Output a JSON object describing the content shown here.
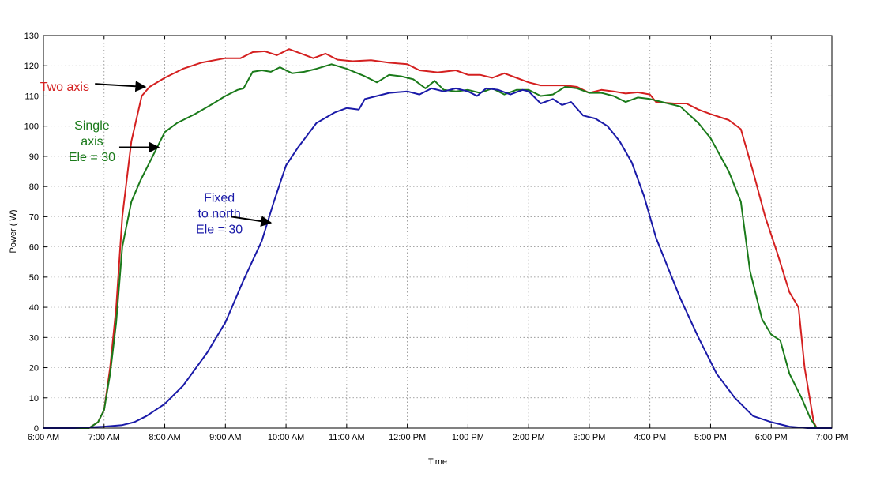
{
  "chart_data": {
    "type": "line",
    "title": "",
    "xlabel": "Time",
    "ylabel": "Power ( W)",
    "xlim": [
      6,
      19
    ],
    "ylim": [
      0,
      130
    ],
    "grid": true,
    "x_ticks": [
      {
        "v": 6,
        "label": "6:00 AM"
      },
      {
        "v": 7,
        "label": "7:00 AM"
      },
      {
        "v": 8,
        "label": "8:00 AM"
      },
      {
        "v": 9,
        "label": "9:00 AM"
      },
      {
        "v": 10,
        "label": "10:00 AM"
      },
      {
        "v": 11,
        "label": "11:00 AM"
      },
      {
        "v": 12,
        "label": "12:00 PM"
      },
      {
        "v": 13,
        "label": "1:00 PM"
      },
      {
        "v": 14,
        "label": "2:00 PM"
      },
      {
        "v": 15,
        "label": "3:00 PM"
      },
      {
        "v": 16,
        "label": "4:00 PM"
      },
      {
        "v": 17,
        "label": "5:00 PM"
      },
      {
        "v": 18,
        "label": "6:00 PM"
      },
      {
        "v": 19,
        "label": "7:00 PM"
      }
    ],
    "y_ticks": [
      0,
      10,
      20,
      30,
      40,
      50,
      60,
      70,
      80,
      90,
      100,
      110,
      120,
      130
    ],
    "series": [
      {
        "name": "Two axis",
        "color": "#d42020",
        "points": [
          [
            6.0,
            0
          ],
          [
            6.5,
            0
          ],
          [
            6.75,
            0
          ],
          [
            6.9,
            2
          ],
          [
            7.0,
            6
          ],
          [
            7.1,
            20
          ],
          [
            7.2,
            40
          ],
          [
            7.3,
            70
          ],
          [
            7.45,
            95
          ],
          [
            7.62,
            110
          ],
          [
            7.75,
            113
          ],
          [
            8.0,
            116
          ],
          [
            8.3,
            119
          ],
          [
            8.6,
            121
          ],
          [
            9.0,
            122.5
          ],
          [
            9.25,
            122.5
          ],
          [
            9.45,
            124.5
          ],
          [
            9.65,
            124.8
          ],
          [
            9.85,
            123.5
          ],
          [
            10.05,
            125.5
          ],
          [
            10.25,
            124
          ],
          [
            10.45,
            122.5
          ],
          [
            10.65,
            124
          ],
          [
            10.85,
            122
          ],
          [
            11.1,
            121.5
          ],
          [
            11.4,
            121.8
          ],
          [
            11.7,
            121
          ],
          [
            12.0,
            120.5
          ],
          [
            12.2,
            118.5
          ],
          [
            12.5,
            117.8
          ],
          [
            12.8,
            118.5
          ],
          [
            13.0,
            117
          ],
          [
            13.2,
            117
          ],
          [
            13.4,
            116
          ],
          [
            13.6,
            117.5
          ],
          [
            13.8,
            116
          ],
          [
            14.0,
            114.5
          ],
          [
            14.2,
            113.5
          ],
          [
            14.4,
            113.5
          ],
          [
            14.6,
            113.5
          ],
          [
            14.8,
            113
          ],
          [
            15.0,
            111
          ],
          [
            15.2,
            112
          ],
          [
            15.4,
            111.5
          ],
          [
            15.6,
            110.8
          ],
          [
            15.8,
            111.2
          ],
          [
            16.0,
            110.5
          ],
          [
            16.1,
            108
          ],
          [
            16.4,
            107.5
          ],
          [
            16.6,
            107.5
          ],
          [
            16.8,
            105.5
          ],
          [
            17.0,
            104
          ],
          [
            17.3,
            102
          ],
          [
            17.5,
            99
          ],
          [
            17.7,
            85
          ],
          [
            17.9,
            70
          ],
          [
            18.1,
            58
          ],
          [
            18.3,
            45
          ],
          [
            18.45,
            40
          ],
          [
            18.55,
            20
          ],
          [
            18.7,
            2
          ],
          [
            18.75,
            0
          ],
          [
            19.0,
            0
          ]
        ]
      },
      {
        "name": "Single axis Ele = 30",
        "color": "#1a7a1a",
        "points": [
          [
            6.0,
            0
          ],
          [
            6.5,
            0
          ],
          [
            6.75,
            0
          ],
          [
            6.9,
            2
          ],
          [
            7.0,
            6
          ],
          [
            7.1,
            18
          ],
          [
            7.2,
            35
          ],
          [
            7.3,
            60
          ],
          [
            7.45,
            75
          ],
          [
            7.6,
            82
          ],
          [
            7.8,
            90
          ],
          [
            8.0,
            98
          ],
          [
            8.2,
            101
          ],
          [
            8.5,
            104
          ],
          [
            8.8,
            107.5
          ],
          [
            9.0,
            110
          ],
          [
            9.2,
            112
          ],
          [
            9.3,
            112.5
          ],
          [
            9.45,
            118
          ],
          [
            9.6,
            118.5
          ],
          [
            9.75,
            118
          ],
          [
            9.9,
            119.5
          ],
          [
            10.1,
            117.5
          ],
          [
            10.3,
            118
          ],
          [
            10.5,
            119
          ],
          [
            10.75,
            120.5
          ],
          [
            11.0,
            119
          ],
          [
            11.3,
            116.5
          ],
          [
            11.5,
            114.5
          ],
          [
            11.7,
            117
          ],
          [
            11.9,
            116.5
          ],
          [
            12.1,
            115.5
          ],
          [
            12.3,
            112.5
          ],
          [
            12.45,
            115
          ],
          [
            12.6,
            112
          ],
          [
            12.8,
            111.5
          ],
          [
            13.0,
            112
          ],
          [
            13.2,
            111
          ],
          [
            13.4,
            112.5
          ],
          [
            13.6,
            110.5
          ],
          [
            13.8,
            112
          ],
          [
            14.0,
            112
          ],
          [
            14.2,
            110
          ],
          [
            14.4,
            110.5
          ],
          [
            14.6,
            113
          ],
          [
            14.8,
            112.5
          ],
          [
            15.0,
            111
          ],
          [
            15.2,
            111
          ],
          [
            15.4,
            110
          ],
          [
            15.6,
            108
          ],
          [
            15.8,
            109.5
          ],
          [
            16.0,
            109
          ],
          [
            16.2,
            108
          ],
          [
            16.5,
            106.5
          ],
          [
            16.8,
            101
          ],
          [
            17.0,
            96
          ],
          [
            17.3,
            85
          ],
          [
            17.5,
            75
          ],
          [
            17.65,
            52
          ],
          [
            17.85,
            36
          ],
          [
            18.0,
            31
          ],
          [
            18.15,
            29
          ],
          [
            18.3,
            18
          ],
          [
            18.5,
            10
          ],
          [
            18.65,
            3
          ],
          [
            18.75,
            0
          ],
          [
            19.0,
            0
          ]
        ]
      },
      {
        "name": "Fixed to north Ele = 30",
        "color": "#1a1aa8",
        "points": [
          [
            6.0,
            0
          ],
          [
            6.5,
            0
          ],
          [
            7.0,
            0.5
          ],
          [
            7.3,
            1
          ],
          [
            7.5,
            2
          ],
          [
            7.7,
            4
          ],
          [
            8.0,
            8
          ],
          [
            8.3,
            14
          ],
          [
            8.7,
            25
          ],
          [
            9.0,
            35
          ],
          [
            9.3,
            49
          ],
          [
            9.6,
            62
          ],
          [
            9.8,
            75
          ],
          [
            10.0,
            87
          ],
          [
            10.2,
            93
          ],
          [
            10.5,
            101
          ],
          [
            10.8,
            104.5
          ],
          [
            11.0,
            106
          ],
          [
            11.2,
            105.5
          ],
          [
            11.3,
            109
          ],
          [
            11.5,
            110
          ],
          [
            11.7,
            111
          ],
          [
            12.0,
            111.5
          ],
          [
            12.2,
            110.5
          ],
          [
            12.4,
            112.5
          ],
          [
            12.6,
            111.5
          ],
          [
            12.8,
            112.5
          ],
          [
            13.0,
            111.5
          ],
          [
            13.15,
            110
          ],
          [
            13.3,
            112.5
          ],
          [
            13.5,
            112
          ],
          [
            13.7,
            110.5
          ],
          [
            13.9,
            112
          ],
          [
            14.0,
            111.5
          ],
          [
            14.2,
            107.5
          ],
          [
            14.4,
            109
          ],
          [
            14.55,
            107
          ],
          [
            14.7,
            108
          ],
          [
            14.9,
            103.5
          ],
          [
            15.1,
            102.5
          ],
          [
            15.3,
            100
          ],
          [
            15.5,
            95
          ],
          [
            15.7,
            88
          ],
          [
            15.9,
            77
          ],
          [
            16.1,
            63
          ],
          [
            16.3,
            53
          ],
          [
            16.5,
            43
          ],
          [
            16.8,
            30
          ],
          [
            17.1,
            18
          ],
          [
            17.4,
            10
          ],
          [
            17.7,
            4
          ],
          [
            18.0,
            2
          ],
          [
            18.3,
            0.5
          ],
          [
            18.6,
            0
          ],
          [
            19.0,
            0
          ]
        ]
      }
    ],
    "annotations": [
      {
        "lines": [
          "Two axis"
        ],
        "color": "#d42020",
        "text_at": [
          6.35,
          113
        ],
        "arrow_from": [
          6.85,
          114
        ],
        "arrow_to": [
          7.68,
          113
        ]
      },
      {
        "lines": [
          "Single",
          "axis",
          "Ele = 30"
        ],
        "color": "#1a7a1a",
        "text_at": [
          6.8,
          95
        ],
        "arrow_from": [
          7.25,
          93
        ],
        "arrow_to": [
          7.9,
          93
        ]
      },
      {
        "lines": [
          "Fixed",
          "to north",
          "Ele = 30"
        ],
        "color": "#1a1aa8",
        "text_at": [
          8.9,
          71
        ],
        "arrow_from": [
          9.1,
          70
        ],
        "arrow_to": [
          9.75,
          68
        ]
      }
    ]
  }
}
